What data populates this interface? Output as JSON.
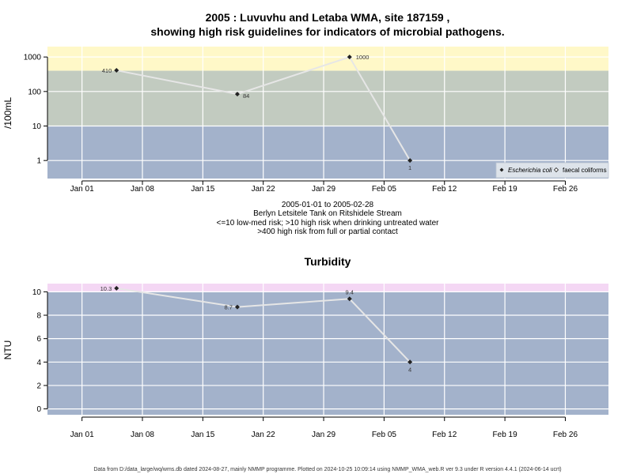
{
  "chart_data": [
    {
      "type": "line",
      "title": [
        "2005 : Luvuvhu and Letaba WMA, site 187159 ,",
        "showing high risk guidelines for indicators of microbial pathogens."
      ],
      "ylabel": "/100mL",
      "yscale": "log",
      "ylim": [
        0.3,
        2000
      ],
      "yticks": [
        1,
        10,
        100,
        1000
      ],
      "ytick_labels": [
        "1",
        "10",
        "100",
        "1000"
      ],
      "xlim": [
        "2004-12-28",
        "2005-03-03"
      ],
      "xticks": [
        "2005-01-01",
        "2005-01-08",
        "2005-01-15",
        "2005-01-22",
        "2005-01-29",
        "2005-02-05",
        "2005-02-12",
        "2005-02-19",
        "2005-02-26"
      ],
      "xtick_labels": [
        "Jan 01",
        "Jan 08",
        "Jan 15",
        "Jan 22",
        "Jan 29",
        "Feb 05",
        "Feb 12",
        "Feb 19",
        "Feb 26"
      ],
      "bands": [
        {
          "from": 0.3,
          "to": 10,
          "color": "#a3b2cb"
        },
        {
          "from": 10,
          "to": 400,
          "color": "#c2cbc0"
        },
        {
          "from": 400,
          "to": 2000,
          "color": "#fff8c8"
        }
      ],
      "series": [
        {
          "name": "Escherichia coli",
          "marker": "filled-diamond",
          "x": [
            "2005-01-05",
            "2005-01-19",
            "2005-02-01",
            "2005-02-08"
          ],
          "values": [
            410,
            84,
            1000,
            1
          ],
          "labels": [
            "410",
            "84",
            "1000",
            "1"
          ]
        }
      ],
      "legend": {
        "position": "bottom-right",
        "items": [
          "Escherichia coli",
          "faecal coliforms"
        ]
      },
      "caption": [
        "2005-01-01 to 2005-02-28",
        "Berlyn Letsitele Tank on Ritshidele Stream",
        "<=10 low-med risk; >10 high risk when drinking untreated water",
        ">400 high risk from full or partial contact"
      ],
      "grid": true
    },
    {
      "type": "line",
      "title": "Turbidity",
      "ylabel": "NTU",
      "ylim": [
        -0.5,
        10.7
      ],
      "yticks": [
        0,
        2,
        4,
        6,
        8,
        10
      ],
      "ytick_labels": [
        "0",
        "2",
        "4",
        "6",
        "8",
        "10"
      ],
      "xlim": [
        "2004-12-28",
        "2005-03-03"
      ],
      "xticks": [
        "2005-01-01",
        "2005-01-08",
        "2005-01-15",
        "2005-01-22",
        "2005-01-29",
        "2005-02-05",
        "2005-02-12",
        "2005-02-19",
        "2005-02-26"
      ],
      "xtick_labels": [
        "Jan 01",
        "Jan 08",
        "Jan 15",
        "Jan 22",
        "Jan 29",
        "Feb 05",
        "Feb 12",
        "Feb 19",
        "Feb 26"
      ],
      "bands": [
        {
          "from": -0.5,
          "to": 10,
          "color": "#a3b2cb"
        },
        {
          "from": 10,
          "to": 10.7,
          "color": "#f4d7f4"
        }
      ],
      "series": [
        {
          "name": "",
          "marker": "filled-diamond",
          "x": [
            "2005-01-05",
            "2005-01-19",
            "2005-02-01",
            "2005-02-08"
          ],
          "values": [
            10.3,
            8.7,
            9.4,
            4
          ],
          "labels": [
            "10.3",
            "8.7",
            "9.4",
            "4"
          ]
        }
      ],
      "grid": true
    }
  ],
  "footer": "Data from D:/data_large/wq/wms.db dated 2024-08-27, mainly NMMP programme. Plotted on 2024-10-25 10:09:14 using NMMP_WMA_web.R ver 9.3 under R version 4.4.1 (2024-06-14 ucrt)"
}
